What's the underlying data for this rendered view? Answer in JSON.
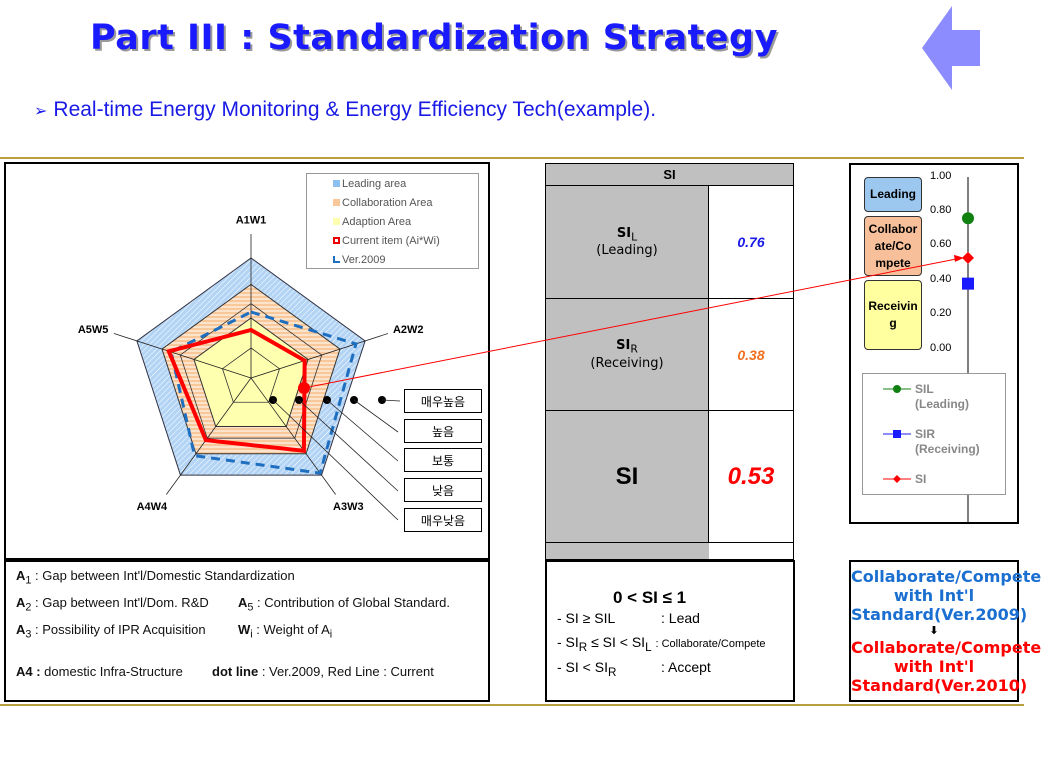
{
  "header": {
    "title": "Part III : Standardization Strategy",
    "subtitle": "Real-time Energy Monitoring & Energy Efficiency Tech(example).",
    "back_icon": "left-arrow-icon",
    "title_color": "#1a1aff"
  },
  "radar": {
    "axes": [
      "A1W1",
      "A2W2",
      "A3W3",
      "A4W4",
      "A5W5"
    ],
    "legend": [
      "Leading area",
      "Collaboration Area",
      "Adaption Area",
      "Current item (Ai*Wi)",
      "Ver.2009"
    ],
    "current": [
      0.4,
      0.47,
      0.75,
      0.64,
      0.72
    ],
    "ver2009": [
      0.55,
      0.92,
      0.98,
      0.8,
      0.7
    ],
    "levels": [
      "매우높음",
      "높음",
      "보통",
      "낮음",
      "매우낮음"
    ],
    "colors": {
      "leading": "#b3d4f5",
      "collaboration": "#f8c89a",
      "adaption": "#ffffb0",
      "current": "#ff0000",
      "ver2009": "#1f6fc0"
    }
  },
  "definitions": {
    "a1": "A",
    "a1s": "1",
    "a1t": " : Gap between Int'l/Domestic Standardization",
    "a2": "A",
    "a2s": "2",
    "a2t": " : Gap between Int'l/Dom. R&D",
    "a5": "A",
    "a5s": "5",
    "a5t": " : Contribution of Global Standard.",
    "a3": "A",
    "a3s": "3",
    "a3t": " : Possibility of IPR Acquisition",
    "wi": "W",
    "wis": "i",
    "wit": " : Weight of A",
    "wit2": "i",
    "a4": "A4 :",
    "a4t": " domestic Infra-Structure",
    "dot": "dot line",
    "dott": " : Ver.2009, Red Line : Current"
  },
  "si_table": {
    "header": "SI",
    "rows": [
      {
        "label": "SI",
        "sub": "L",
        "desc": "(Leading)",
        "value": "0.76",
        "color": "#1a1ae6"
      },
      {
        "label": "SI",
        "sub": "R",
        "desc": "(Receiving)",
        "value": "0.38",
        "color": "#f07020"
      },
      {
        "label": "SI",
        "sub": "",
        "desc": "",
        "value": "0.53",
        "color": "#ff0000"
      }
    ]
  },
  "rules": {
    "title": "0 < SI ≤ 1",
    "r1": "- SI ≥ SIL",
    "r1v": ": Lead",
    "r2a": "- SI",
    "r2as": "R",
    "r2b": " ≤ SI < SI",
    "r2bs": "L",
    "r2v": ": Collaborate/Compete",
    "r3a": "- SI < SI",
    "r3as": "R",
    "r3v": ": Accept"
  },
  "si_chart": {
    "ticks": [
      "1.00",
      "0.80",
      "0.60",
      "0.40",
      "0.20",
      "0.00"
    ],
    "zones": [
      "Leading",
      "Collabor ate/Co mpete",
      "Receivin g"
    ],
    "points": {
      "SIL": 0.76,
      "SIR": 0.38,
      "SI": 0.53
    },
    "legend": [
      {
        "name": "SIL",
        "desc": "(Leading)",
        "color": "#108010"
      },
      {
        "name": "SIR",
        "desc": "(Receiving)",
        "color": "#1a1aff"
      },
      {
        "name": "SI",
        "desc": "",
        "color": "#ff0000"
      }
    ]
  },
  "conclusion": {
    "old": "Collaborate/Compete with Int'l Standard(Ver.2009)",
    "arrow": "⬇",
    "new": "Collaborate/Compete with Int'l Standard(Ver.2010)"
  }
}
